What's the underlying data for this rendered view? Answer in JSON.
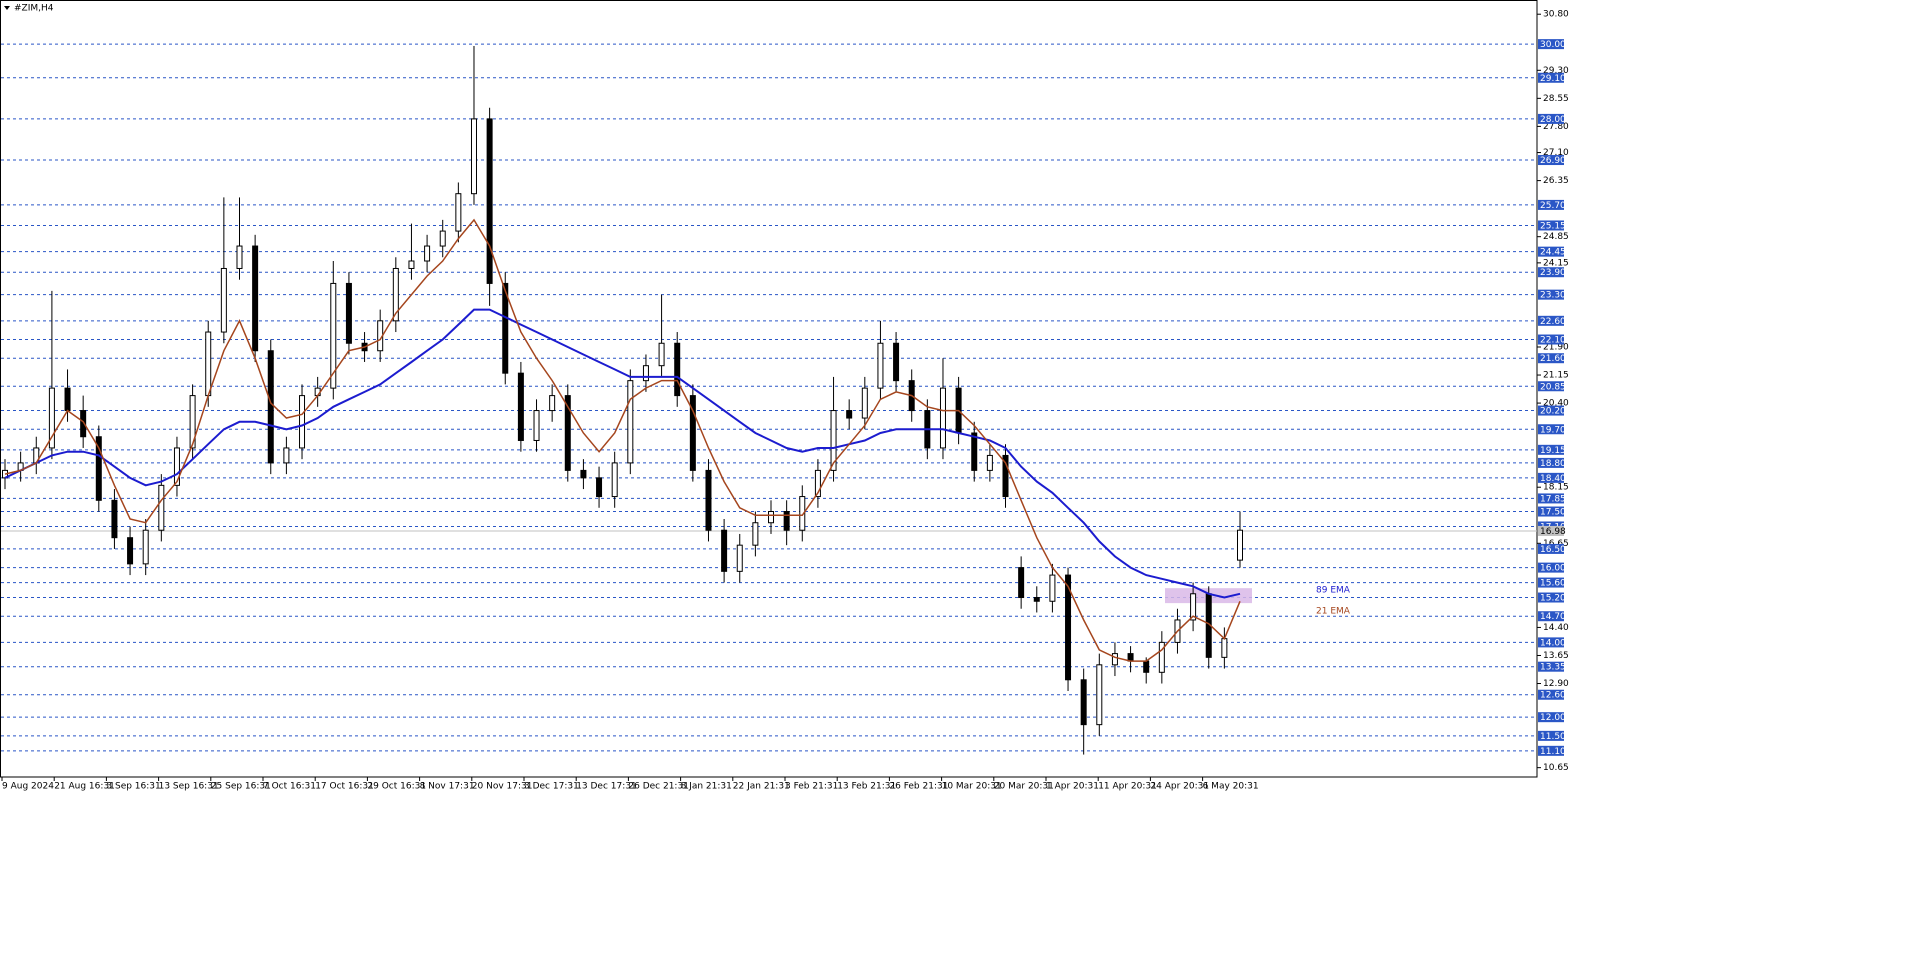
{
  "chart_data": {
    "type": "candlestick",
    "title": "#ZIM,H4",
    "x_labels": [
      "9 Aug 2024",
      "21 Aug 16:31",
      "3 Sep 16:31",
      "13 Sep 16:31",
      "25 Sep 16:31",
      "7 Oct 16:31",
      "17 Oct 16:31",
      "29 Oct 16:31",
      "8 Nov 17:31",
      "20 Nov 17:31",
      "3 Dec 17:31",
      "13 Dec 17:31",
      "26 Dec 21:31",
      "8 Jan 21:31",
      "22 Jan 21:31",
      "3 Feb 21:31",
      "13 Feb 21:31",
      "26 Feb 21:31",
      "10 Mar 20:31",
      "20 Mar 20:31",
      "1 Apr 20:31",
      "11 Apr 20:31",
      "24 Apr 20:31",
      "6 May 20:31"
    ],
    "open": [
      18.4,
      18.6,
      18.8,
      19.2,
      20.8,
      20.2,
      19.5,
      17.8,
      16.8,
      16.1,
      17.0,
      18.2,
      19.2,
      20.6,
      22.3,
      24.0,
      24.6,
      21.8,
      18.8,
      19.2,
      20.6,
      20.8,
      23.6,
      22.0,
      21.8,
      22.6,
      24.0,
      24.2,
      24.6,
      25.0,
      26.0,
      28.0,
      23.6,
      21.2,
      19.4,
      20.2,
      20.6,
      18.6,
      18.4,
      17.9,
      18.8,
      21.0,
      21.4,
      22.0,
      20.6,
      18.6,
      17.0,
      15.9,
      16.6,
      17.2,
      17.5,
      17.0,
      17.9,
      18.6,
      20.2,
      20.0,
      20.8,
      22.0,
      21.0,
      20.2,
      19.2,
      20.8,
      19.6,
      18.6,
      19.0,
      16.0,
      15.2,
      15.1,
      15.8,
      13.0,
      11.8,
      13.4,
      13.7,
      13.5,
      13.2,
      14.0,
      14.6,
      15.3,
      13.6,
      16.2
    ],
    "high": [
      18.9,
      19.1,
      19.5,
      23.4,
      21.3,
      20.6,
      19.8,
      18.1,
      17.1,
      17.3,
      18.5,
      19.5,
      20.9,
      22.6,
      25.9,
      25.9,
      24.9,
      22.1,
      19.5,
      20.9,
      21.1,
      24.2,
      23.9,
      22.3,
      22.9,
      24.3,
      25.2,
      24.9,
      25.3,
      26.3,
      29.95,
      28.3,
      23.9,
      21.5,
      20.5,
      20.9,
      20.9,
      18.9,
      18.7,
      19.1,
      21.3,
      21.7,
      23.3,
      22.3,
      20.9,
      18.9,
      17.3,
      16.9,
      17.5,
      17.8,
      17.8,
      18.2,
      18.9,
      21.1,
      20.5,
      21.1,
      22.6,
      22.3,
      21.3,
      20.5,
      21.6,
      21.1,
      19.9,
      19.3,
      19.3,
      16.3,
      15.5,
      16.1,
      16.0,
      13.3,
      13.7,
      14.0,
      13.9,
      13.6,
      14.3,
      14.9,
      15.6,
      15.5,
      14.4,
      17.5
    ],
    "low": [
      18.1,
      18.3,
      18.5,
      18.9,
      19.9,
      19.2,
      17.5,
      16.5,
      15.8,
      15.8,
      16.7,
      17.9,
      18.9,
      20.3,
      22.0,
      23.7,
      21.5,
      18.5,
      18.5,
      18.9,
      20.3,
      20.5,
      21.7,
      21.5,
      21.5,
      22.3,
      23.7,
      23.9,
      24.3,
      24.7,
      25.7,
      23.0,
      20.9,
      19.1,
      19.1,
      19.9,
      18.3,
      18.1,
      17.6,
      17.6,
      18.5,
      20.7,
      21.1,
      20.3,
      18.3,
      16.7,
      15.6,
      15.6,
      16.3,
      16.9,
      16.6,
      16.7,
      17.6,
      18.3,
      19.7,
      19.7,
      20.5,
      20.7,
      19.9,
      18.9,
      18.9,
      19.3,
      18.3,
      18.3,
      17.6,
      14.9,
      14.8,
      14.8,
      12.7,
      11.0,
      11.5,
      13.1,
      13.2,
      12.9,
      12.9,
      13.7,
      14.3,
      13.3,
      13.3,
      16.0
    ],
    "close": [
      18.6,
      18.8,
      19.2,
      20.8,
      20.2,
      19.5,
      17.8,
      16.8,
      16.1,
      17.0,
      18.2,
      19.2,
      20.6,
      22.3,
      24.0,
      24.6,
      21.8,
      18.8,
      19.2,
      20.6,
      20.8,
      23.6,
      22.0,
      21.8,
      22.6,
      24.0,
      24.2,
      24.6,
      25.0,
      26.0,
      28.0,
      23.6,
      21.2,
      19.4,
      20.2,
      20.6,
      18.6,
      18.4,
      17.9,
      18.8,
      21.0,
      21.4,
      22.0,
      20.6,
      18.6,
      17.0,
      15.9,
      16.6,
      17.2,
      17.5,
      17.0,
      17.9,
      18.6,
      20.2,
      20.0,
      20.8,
      22.0,
      21.0,
      20.2,
      19.2,
      20.8,
      19.6,
      18.6,
      19.0,
      17.9,
      15.2,
      15.1,
      15.8,
      13.0,
      11.8,
      13.4,
      13.7,
      13.5,
      13.2,
      14.0,
      14.6,
      15.3,
      13.6,
      14.1,
      17.0
    ],
    "series": [
      {
        "name": "89 EMA",
        "color": "#1c1ccf",
        "values": [
          18.4,
          18.6,
          18.8,
          19.0,
          19.1,
          19.1,
          19.0,
          18.7,
          18.4,
          18.2,
          18.3,
          18.5,
          18.9,
          19.3,
          19.7,
          19.9,
          19.9,
          19.8,
          19.7,
          19.8,
          20.0,
          20.3,
          20.5,
          20.7,
          20.9,
          21.2,
          21.5,
          21.8,
          22.1,
          22.5,
          22.9,
          22.9,
          22.7,
          22.5,
          22.3,
          22.1,
          21.9,
          21.7,
          21.5,
          21.3,
          21.1,
          21.1,
          21.1,
          21.1,
          20.8,
          20.5,
          20.2,
          19.9,
          19.6,
          19.4,
          19.2,
          19.1,
          19.2,
          19.2,
          19.3,
          19.4,
          19.6,
          19.7,
          19.7,
          19.7,
          19.7,
          19.6,
          19.5,
          19.4,
          19.2,
          18.7,
          18.3,
          18.0,
          17.6,
          17.2,
          16.7,
          16.3,
          16.0,
          15.8,
          15.7,
          15.6,
          15.5,
          15.3,
          15.2,
          15.3
        ]
      },
      {
        "name": "21 EMA",
        "color": "#a5461e",
        "values": [
          18.5,
          18.6,
          18.8,
          19.5,
          20.2,
          19.9,
          19.2,
          18.2,
          17.3,
          17.2,
          17.8,
          18.3,
          19.3,
          20.6,
          21.8,
          22.6,
          21.6,
          20.4,
          20.0,
          20.1,
          20.6,
          21.2,
          21.8,
          21.9,
          22.1,
          22.8,
          23.3,
          23.8,
          24.2,
          24.8,
          25.3,
          24.6,
          23.4,
          22.3,
          21.6,
          21.0,
          20.3,
          19.6,
          19.1,
          19.6,
          20.5,
          20.8,
          21.0,
          21.0,
          20.2,
          19.2,
          18.3,
          17.6,
          17.4,
          17.4,
          17.4,
          17.4,
          18.0,
          18.8,
          19.3,
          19.8,
          20.5,
          20.7,
          20.6,
          20.3,
          20.2,
          20.2,
          19.8,
          19.3,
          18.8,
          17.8,
          16.8,
          16.0,
          15.5,
          14.6,
          13.8,
          13.6,
          13.5,
          13.5,
          13.8,
          14.3,
          14.7,
          14.5,
          14.1,
          15.1
        ]
      }
    ],
    "zone": {
      "values": [
        15.05,
        15.45
      ],
      "color": "#d9b8e8"
    },
    "ylim": [
      10.4,
      31.18
    ],
    "yticks": [
      {
        "value": 30.8,
        "label": "30.80"
      },
      {
        "value": 29.3,
        "label": "29.30"
      },
      {
        "value": 28.55,
        "label": "28.55"
      },
      {
        "value": 27.8,
        "label": "27.80"
      },
      {
        "value": 27.1,
        "label": "27.10"
      },
      {
        "value": 26.35,
        "label": "26.35"
      },
      {
        "value": 24.85,
        "label": "24.85"
      },
      {
        "value": 24.15,
        "label": "24.15"
      },
      {
        "value": 21.9,
        "label": "21.90"
      },
      {
        "value": 21.15,
        "label": "21.15"
      },
      {
        "value": 20.4,
        "label": "20.40"
      },
      {
        "value": 18.15,
        "label": "18.15"
      },
      {
        "value": 16.65,
        "label": "16.65"
      },
      {
        "value": 14.4,
        "label": "14.40"
      },
      {
        "value": 13.65,
        "label": "13.65"
      },
      {
        "value": 12.9,
        "label": "12.90"
      },
      {
        "value": 10.65,
        "label": "10.65"
      }
    ],
    "levels": [
      {
        "value": 30,
        "label": "30.00"
      },
      {
        "value": 29.1,
        "label": "29.10"
      },
      {
        "value": 28,
        "label": "28.00"
      },
      {
        "value": 26.9,
        "label": "26.90"
      },
      {
        "value": 25.7,
        "label": "25.70"
      },
      {
        "value": 25.15,
        "label": "25.15"
      },
      {
        "value": 24.45,
        "label": "24.45"
      },
      {
        "value": 23.9,
        "label": "23.90"
      },
      {
        "value": 23.3,
        "label": "23.30"
      },
      {
        "value": 22.6,
        "label": "22.60"
      },
      {
        "value": 22.1,
        "label": "22.10"
      },
      {
        "value": 21.6,
        "label": "21.60"
      },
      {
        "value": 20.85,
        "label": "20.85"
      },
      {
        "value": 20.2,
        "label": "20.20"
      },
      {
        "value": 19.7,
        "label": "19.70"
      },
      {
        "value": 19.15,
        "label": "19.15"
      },
      {
        "value": 18.8,
        "label": "18.80"
      },
      {
        "value": 18.4,
        "label": "18.40"
      },
      {
        "value": 17.85,
        "label": "17.85"
      },
      {
        "value": 17.5,
        "label": "17.50"
      },
      {
        "value": 17.1,
        "label": "17.10"
      },
      {
        "value": 16.5,
        "label": "16.50"
      },
      {
        "value": 16,
        "label": "16.00"
      },
      {
        "value": 15.6,
        "label": "15.60"
      },
      {
        "value": 15.2,
        "label": "15.20"
      },
      {
        "value": 14.7,
        "label": "14.70"
      },
      {
        "value": 14,
        "label": "14.00"
      },
      {
        "value": 13.35,
        "label": "13.35"
      },
      {
        "value": 12.6,
        "label": "12.60"
      },
      {
        "value": 12,
        "label": "12.00"
      },
      {
        "value": 11.5,
        "label": "11.50"
      },
      {
        "value": 11.1,
        "label": "11.10"
      }
    ],
    "level_color": "#2a56c6",
    "current_price": {
      "value": 16.98,
      "label": "16.98"
    }
  }
}
